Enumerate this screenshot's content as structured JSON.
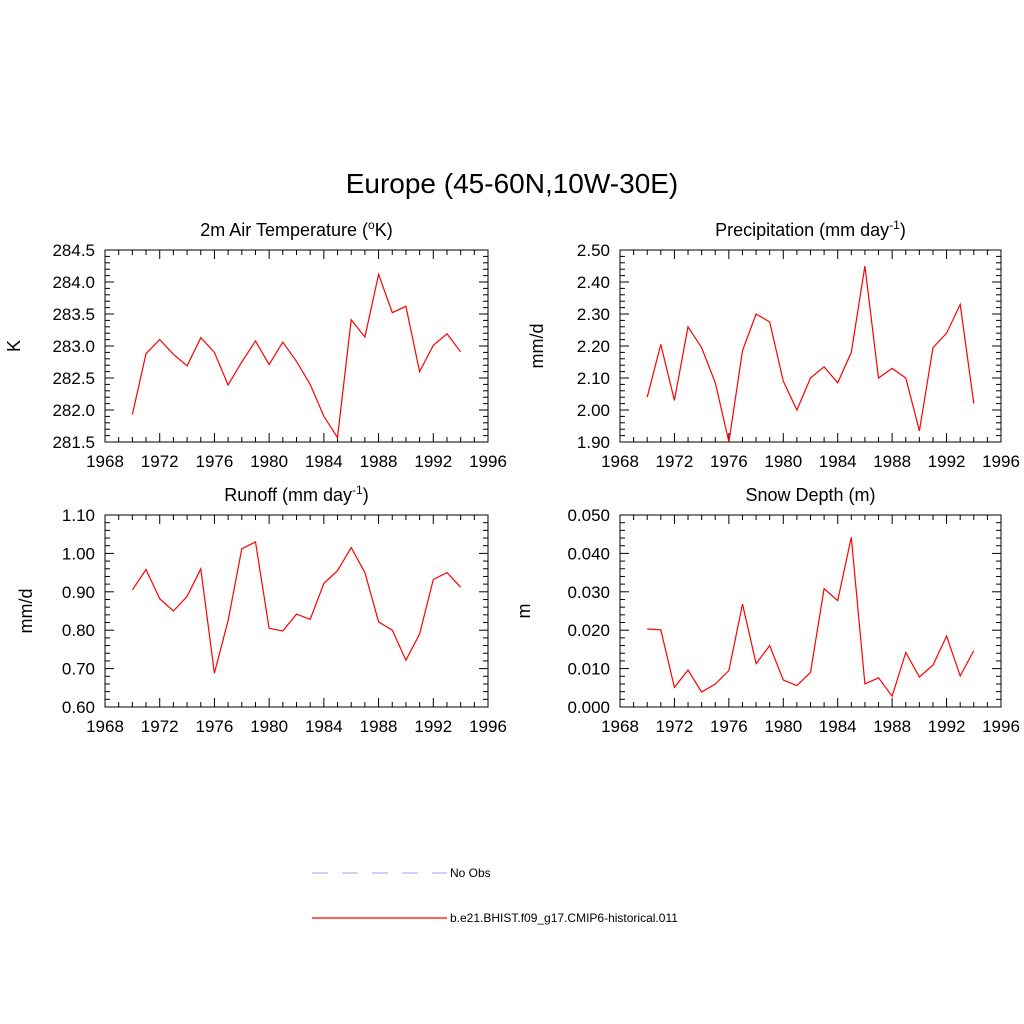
{
  "figure": {
    "title": "Europe (45-60N,10W-30E)",
    "legend": [
      {
        "label": "No Obs",
        "color": "#b3b3ff",
        "style": "dashed"
      },
      {
        "label": "b.e21.BHIST.f09_g17.CMIP6-historical.011",
        "color": "#ff0000",
        "style": "solid"
      }
    ]
  },
  "chart_data": [
    {
      "type": "line",
      "title": "2m Air Temperature (",
      "title_sup": "o",
      "title_suffix": "K)",
      "ylabel": "K",
      "xlim": [
        1968,
        1996
      ],
      "ylim": [
        281.5,
        284.5
      ],
      "xticks": [
        1968,
        1972,
        1976,
        1980,
        1984,
        1988,
        1992,
        1996
      ],
      "yticks": [
        "281.5",
        "282.0",
        "282.5",
        "283.0",
        "283.5",
        "284.0",
        "284.5"
      ],
      "x": [
        1970,
        1971,
        1972,
        1973,
        1974,
        1975,
        1976,
        1977,
        1978,
        1979,
        1980,
        1981,
        1982,
        1983,
        1984,
        1985,
        1986,
        1987,
        1988,
        1989,
        1990,
        1991,
        1992,
        1993,
        1994
      ],
      "series": [
        {
          "name": "b.e21.BHIST.f09_g17.CMIP6-historical.011",
          "color": "#ff0000",
          "values": [
            281.93,
            282.88,
            283.1,
            282.87,
            282.69,
            283.13,
            282.9,
            282.39,
            282.75,
            283.08,
            282.71,
            283.06,
            282.76,
            282.4,
            281.9,
            281.57,
            283.41,
            283.14,
            284.12,
            283.52,
            283.62,
            282.6,
            283.01,
            283.19,
            282.91
          ]
        }
      ]
    },
    {
      "type": "line",
      "title": "Precipitation (mm day",
      "title_sup": "-1",
      "title_suffix": ")",
      "ylabel": "mm/d",
      "xlim": [
        1968,
        1996
      ],
      "ylim": [
        1.9,
        2.5
      ],
      "xticks": [
        1968,
        1972,
        1976,
        1980,
        1984,
        1988,
        1992,
        1996
      ],
      "yticks": [
        "1.90",
        "2.00",
        "2.10",
        "2.20",
        "2.30",
        "2.40",
        "2.50"
      ],
      "x": [
        1970,
        1971,
        1972,
        1973,
        1974,
        1975,
        1976,
        1977,
        1978,
        1979,
        1980,
        1981,
        1982,
        1983,
        1984,
        1985,
        1986,
        1987,
        1988,
        1989,
        1990,
        1991,
        1992,
        1993,
        1994
      ],
      "series": [
        {
          "name": "b.e21.BHIST.f09_g17.CMIP6-historical.011",
          "color": "#ff0000",
          "values": [
            2.04,
            2.205,
            2.03,
            2.26,
            2.195,
            2.085,
            1.9,
            2.185,
            2.3,
            2.275,
            2.09,
            2.0,
            2.1,
            2.135,
            2.085,
            2.18,
            2.45,
            2.1,
            2.13,
            2.1,
            1.935,
            2.195,
            2.24,
            2.33,
            2.02
          ]
        }
      ]
    },
    {
      "type": "line",
      "title": "Runoff (mm day",
      "title_sup": "-1",
      "title_suffix": ")",
      "ylabel": "mm/d",
      "xlim": [
        1968,
        1996
      ],
      "ylim": [
        0.6,
        1.1
      ],
      "xticks": [
        1968,
        1972,
        1976,
        1980,
        1984,
        1988,
        1992,
        1996
      ],
      "yticks": [
        "0.60",
        "0.70",
        "0.80",
        "0.90",
        "1.00",
        "1.10"
      ],
      "x": [
        1970,
        1971,
        1972,
        1973,
        1974,
        1975,
        1976,
        1977,
        1978,
        1979,
        1980,
        1981,
        1982,
        1983,
        1984,
        1985,
        1986,
        1987,
        1988,
        1989,
        1990,
        1991,
        1992,
        1993,
        1994
      ],
      "series": [
        {
          "name": "b.e21.BHIST.f09_g17.CMIP6-historical.011",
          "color": "#ff0000",
          "values": [
            0.905,
            0.958,
            0.882,
            0.85,
            0.888,
            0.96,
            0.688,
            0.825,
            1.012,
            1.03,
            0.805,
            0.798,
            0.842,
            0.828,
            0.922,
            0.955,
            1.015,
            0.95,
            0.822,
            0.8,
            0.722,
            0.79,
            0.932,
            0.95,
            0.912
          ]
        }
      ]
    },
    {
      "type": "line",
      "title": "Snow Depth (m)",
      "title_sup": "",
      "title_suffix": "",
      "ylabel": "m",
      "xlim": [
        1968,
        1996
      ],
      "ylim": [
        0.0,
        0.05
      ],
      "xticks": [
        1968,
        1972,
        1976,
        1980,
        1984,
        1988,
        1992,
        1996
      ],
      "yticks": [
        "0.000",
        "0.010",
        "0.020",
        "0.030",
        "0.040",
        "0.050"
      ],
      "x": [
        1970,
        1971,
        1972,
        1973,
        1974,
        1975,
        1976,
        1977,
        1978,
        1979,
        1980,
        1981,
        1982,
        1983,
        1984,
        1985,
        1986,
        1987,
        1988,
        1989,
        1990,
        1991,
        1992,
        1993,
        1994
      ],
      "series": [
        {
          "name": "b.e21.BHIST.f09_g17.CMIP6-historical.011",
          "color": "#ff0000",
          "values": [
            0.0203,
            0.0201,
            0.0051,
            0.0096,
            0.0039,
            0.006,
            0.0095,
            0.0268,
            0.0113,
            0.016,
            0.007,
            0.0056,
            0.009,
            0.0308,
            0.0277,
            0.0442,
            0.006,
            0.0076,
            0.0028,
            0.0142,
            0.0078,
            0.0109,
            0.0185,
            0.0081,
            0.0147
          ]
        }
      ]
    }
  ]
}
